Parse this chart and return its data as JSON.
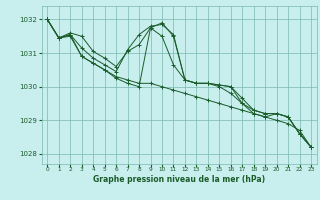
{
  "title": "Graphe pression niveau de la mer (hPa)",
  "background_color": "#c8eeed",
  "grid_color": "#7ab8b0",
  "line_color": "#1a5c2a",
  "xlim": [
    -0.5,
    23.5
  ],
  "ylim": [
    1027.7,
    1032.4
  ],
  "yticks": [
    1028,
    1029,
    1030,
    1031,
    1032
  ],
  "xticks": [
    0,
    1,
    2,
    3,
    4,
    5,
    6,
    7,
    8,
    9,
    10,
    11,
    12,
    13,
    14,
    15,
    16,
    17,
    18,
    19,
    20,
    21,
    22,
    23
  ],
  "series": [
    [
      1032.0,
      1031.45,
      1031.55,
      1031.15,
      1030.85,
      1030.65,
      1030.45,
      1031.1,
      1031.55,
      1031.8,
      1031.85,
      1031.55,
      1030.2,
      1030.1,
      1030.1,
      1030.05,
      1030.0,
      1029.65,
      1029.3,
      1029.2,
      1029.2,
      1029.1,
      1028.6,
      1028.2
    ],
    [
      1032.0,
      1031.45,
      1031.55,
      1030.9,
      1030.7,
      1030.5,
      1030.25,
      1030.1,
      1030.0,
      1031.75,
      1031.5,
      1030.65,
      1030.2,
      1030.1,
      1030.1,
      1030.05,
      1030.0,
      1029.5,
      1029.2,
      1029.1,
      1029.2,
      1029.1,
      1028.6,
      1028.2
    ],
    [
      1032.0,
      1031.45,
      1031.5,
      1030.9,
      1030.7,
      1030.5,
      1030.3,
      1030.2,
      1030.1,
      1030.1,
      1030.0,
      1029.9,
      1029.8,
      1029.7,
      1029.6,
      1029.5,
      1029.4,
      1029.3,
      1029.2,
      1029.1,
      1029.0,
      1028.9,
      1028.7,
      1028.2
    ],
    [
      1032.0,
      1031.45,
      1031.6,
      1031.5,
      1031.05,
      1030.85,
      1030.6,
      1031.05,
      1031.25,
      1031.75,
      1031.9,
      1031.5,
      1030.2,
      1030.1,
      1030.1,
      1030.0,
      1029.8,
      1029.5,
      1029.3,
      1029.2,
      1029.2,
      1029.1,
      1028.6,
      1028.2
    ]
  ]
}
